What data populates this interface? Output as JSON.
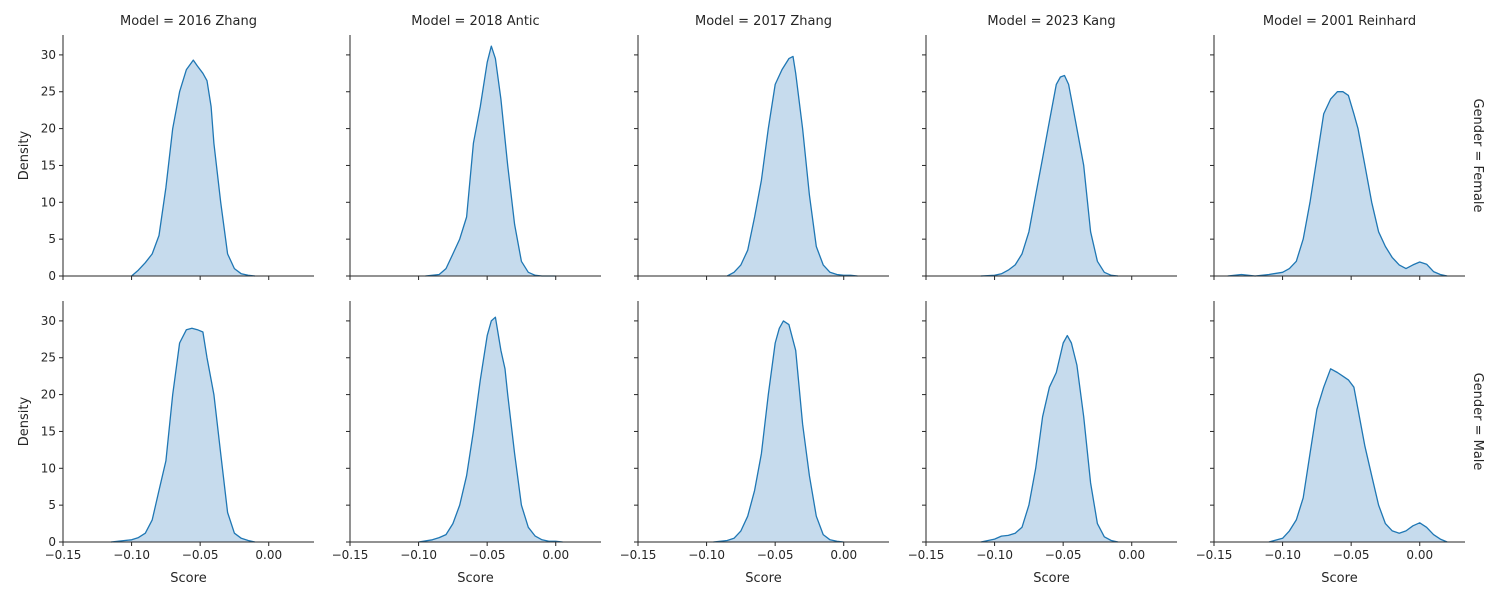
{
  "chart_data": {
    "type": "area",
    "figure_kind": "facet-grid-kde",
    "col_labels": [
      "Model = 2016 Zhang",
      "Model = 2018 Antic",
      "Model = 2017 Zhang",
      "Model = 2023 Kang",
      "Model = 2001 Reinhard"
    ],
    "row_labels": [
      "Gender = Female",
      "Gender = Male"
    ],
    "xlabel": "Score",
    "ylabel": "Density",
    "xlim": [
      -0.15,
      0.033
    ],
    "ylim": [
      0,
      32.7
    ],
    "xticks": [
      -0.15,
      -0.1,
      -0.05,
      0.0
    ],
    "xtick_labels": [
      "−0.15",
      "−0.10",
      "−0.05",
      "0.00"
    ],
    "yticks": [
      0,
      5,
      10,
      15,
      20,
      25,
      30
    ],
    "ytick_labels": [
      "0",
      "5",
      "10",
      "15",
      "20",
      "25",
      "30"
    ],
    "grid": false,
    "line_color": "#1f77b4",
    "fill_color": "#c6dbed",
    "panels": [
      [
        {
          "x": [
            -0.1,
            -0.095,
            -0.09,
            -0.085,
            -0.08,
            -0.075,
            -0.07,
            -0.065,
            -0.06,
            -0.055,
            -0.052,
            -0.048,
            -0.045,
            -0.042,
            -0.04,
            -0.035,
            -0.03,
            -0.025,
            -0.02,
            -0.015,
            -0.01
          ],
          "y": [
            0,
            0.8,
            1.8,
            3,
            5.5,
            12,
            20,
            25,
            28,
            29.3,
            28.5,
            27.5,
            26.5,
            23,
            18,
            10,
            3,
            1,
            0.3,
            0.1,
            0
          ]
        },
        {
          "x": [
            -0.095,
            -0.085,
            -0.08,
            -0.075,
            -0.07,
            -0.065,
            -0.06,
            -0.055,
            -0.05,
            -0.047,
            -0.044,
            -0.04,
            -0.035,
            -0.03,
            -0.025,
            -0.02,
            -0.015,
            -0.01,
            0.0
          ],
          "y": [
            0,
            0.2,
            1,
            3,
            5,
            8,
            18,
            23,
            29,
            31.2,
            29.5,
            24,
            15,
            7,
            2,
            0.5,
            0.1,
            0,
            0
          ]
        },
        {
          "x": [
            -0.085,
            -0.08,
            -0.075,
            -0.07,
            -0.065,
            -0.06,
            -0.055,
            -0.05,
            -0.045,
            -0.04,
            -0.037,
            -0.035,
            -0.03,
            -0.025,
            -0.02,
            -0.015,
            -0.01,
            -0.005,
            0.0,
            0.005,
            0.01
          ],
          "y": [
            0,
            0.5,
            1.5,
            3.5,
            8,
            13,
            20,
            26,
            28,
            29.5,
            29.8,
            27.5,
            20,
            11,
            4,
            1.5,
            0.5,
            0.2,
            0.1,
            0.1,
            0
          ]
        },
        {
          "x": [
            -0.11,
            -0.1,
            -0.095,
            -0.09,
            -0.085,
            -0.08,
            -0.075,
            -0.07,
            -0.065,
            -0.06,
            -0.055,
            -0.052,
            -0.049,
            -0.046,
            -0.043,
            -0.04,
            -0.035,
            -0.03,
            -0.025,
            -0.02,
            -0.015,
            -0.01
          ],
          "y": [
            0,
            0.1,
            0.3,
            0.8,
            1.5,
            3,
            6,
            11,
            16,
            21,
            26,
            27,
            27.2,
            26,
            23,
            20,
            15,
            6,
            2,
            0.5,
            0.1,
            0
          ]
        },
        {
          "x": [
            -0.14,
            -0.13,
            -0.12,
            -0.11,
            -0.1,
            -0.095,
            -0.09,
            -0.085,
            -0.08,
            -0.075,
            -0.07,
            -0.065,
            -0.06,
            -0.056,
            -0.052,
            -0.048,
            -0.045,
            -0.04,
            -0.035,
            -0.03,
            -0.025,
            -0.02,
            -0.015,
            -0.01,
            -0.005,
            0.0,
            0.005,
            0.01,
            0.015,
            0.02
          ],
          "y": [
            0,
            0.2,
            0,
            0.2,
            0.5,
            1,
            2,
            5,
            10,
            16,
            22,
            24,
            25,
            25,
            24.5,
            22,
            20,
            15,
            10,
            6,
            4,
            2.5,
            1.5,
            1,
            1.5,
            1.9,
            1.6,
            0.6,
            0.2,
            0
          ]
        }
      ],
      [
        {
          "x": [
            -0.115,
            -0.105,
            -0.1,
            -0.095,
            -0.09,
            -0.085,
            -0.08,
            -0.075,
            -0.07,
            -0.065,
            -0.06,
            -0.056,
            -0.052,
            -0.048,
            -0.045,
            -0.04,
            -0.035,
            -0.03,
            -0.025,
            -0.02,
            -0.015,
            -0.01
          ],
          "y": [
            0,
            0.2,
            0.3,
            0.6,
            1.2,
            3,
            7,
            11,
            20,
            27,
            28.8,
            29,
            28.8,
            28.5,
            25,
            20,
            12,
            4,
            1.2,
            0.5,
            0.2,
            0
          ]
        },
        {
          "x": [
            -0.1,
            -0.09,
            -0.085,
            -0.08,
            -0.075,
            -0.07,
            -0.065,
            -0.06,
            -0.055,
            -0.05,
            -0.047,
            -0.044,
            -0.04,
            -0.037,
            -0.035,
            -0.03,
            -0.025,
            -0.02,
            -0.015,
            -0.01,
            -0.005,
            0.0,
            0.005
          ],
          "y": [
            0,
            0.3,
            0.6,
            1,
            2.5,
            5,
            9,
            15,
            22,
            28,
            30,
            30.5,
            26,
            23.5,
            20,
            12,
            5,
            2,
            0.8,
            0.3,
            0.1,
            0.1,
            0
          ]
        },
        {
          "x": [
            -0.095,
            -0.085,
            -0.08,
            -0.075,
            -0.07,
            -0.065,
            -0.06,
            -0.055,
            -0.05,
            -0.047,
            -0.044,
            -0.04,
            -0.035,
            -0.03,
            -0.025,
            -0.02,
            -0.015,
            -0.01,
            -0.005,
            0.0
          ],
          "y": [
            0,
            0.2,
            0.5,
            1.5,
            3.5,
            7,
            12,
            20,
            27,
            29,
            30,
            29.5,
            26,
            16,
            9,
            3.5,
            1,
            0.3,
            0.1,
            0
          ]
        },
        {
          "x": [
            -0.11,
            -0.1,
            -0.095,
            -0.09,
            -0.085,
            -0.08,
            -0.075,
            -0.07,
            -0.065,
            -0.06,
            -0.055,
            -0.05,
            -0.047,
            -0.044,
            -0.04,
            -0.035,
            -0.03,
            -0.025,
            -0.02,
            -0.015,
            -0.01
          ],
          "y": [
            0,
            0.4,
            0.8,
            0.9,
            1.2,
            2,
            5,
            10,
            17,
            21,
            23,
            27,
            28,
            27,
            24,
            17,
            8,
            2.5,
            0.7,
            0.2,
            0
          ]
        },
        {
          "x": [
            -0.11,
            -0.1,
            -0.095,
            -0.09,
            -0.085,
            -0.08,
            -0.075,
            -0.07,
            -0.065,
            -0.06,
            -0.056,
            -0.052,
            -0.048,
            -0.045,
            -0.04,
            -0.035,
            -0.03,
            -0.025,
            -0.02,
            -0.015,
            -0.01,
            -0.005,
            0.0,
            0.005,
            0.01,
            0.015,
            0.02
          ],
          "y": [
            0,
            0.5,
            1.5,
            3,
            6,
            12,
            18,
            21,
            23.5,
            23,
            22.5,
            22,
            21,
            18,
            13,
            9,
            5,
            2.5,
            1.5,
            1.2,
            1.5,
            2.2,
            2.6,
            2,
            1,
            0.4,
            0
          ]
        }
      ]
    ]
  }
}
